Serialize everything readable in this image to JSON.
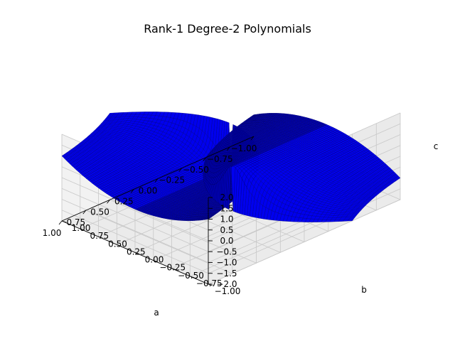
{
  "chart_data": {
    "type": "surface3d",
    "title": "Rank-1 Degree-2 Polynomials",
    "xlabel": "a",
    "ylabel": "b",
    "zlabel": "c",
    "xlim": [
      -1.0,
      1.0
    ],
    "ylim": [
      -1.0,
      1.0
    ],
    "zlim": [
      -2.0,
      2.0
    ],
    "x_ticks": [
      "−1.00",
      "−0.75",
      "−0.50",
      "−0.25",
      "0.00",
      "0.25",
      "0.50",
      "0.75",
      "1.00"
    ],
    "y_ticks": [
      "−1.00",
      "−0.75",
      "−0.50",
      "−0.25",
      "0.00",
      "0.25",
      "0.50",
      "0.75",
      "1.00"
    ],
    "z_ticks": [
      "−2.0",
      "−1.5",
      "−1.0",
      "−0.5",
      "0.0",
      "0.5",
      "1.0",
      "1.5",
      "2.0"
    ],
    "surface": "b^2 = a*c",
    "surface_color": "#0000ff",
    "grid": true
  }
}
